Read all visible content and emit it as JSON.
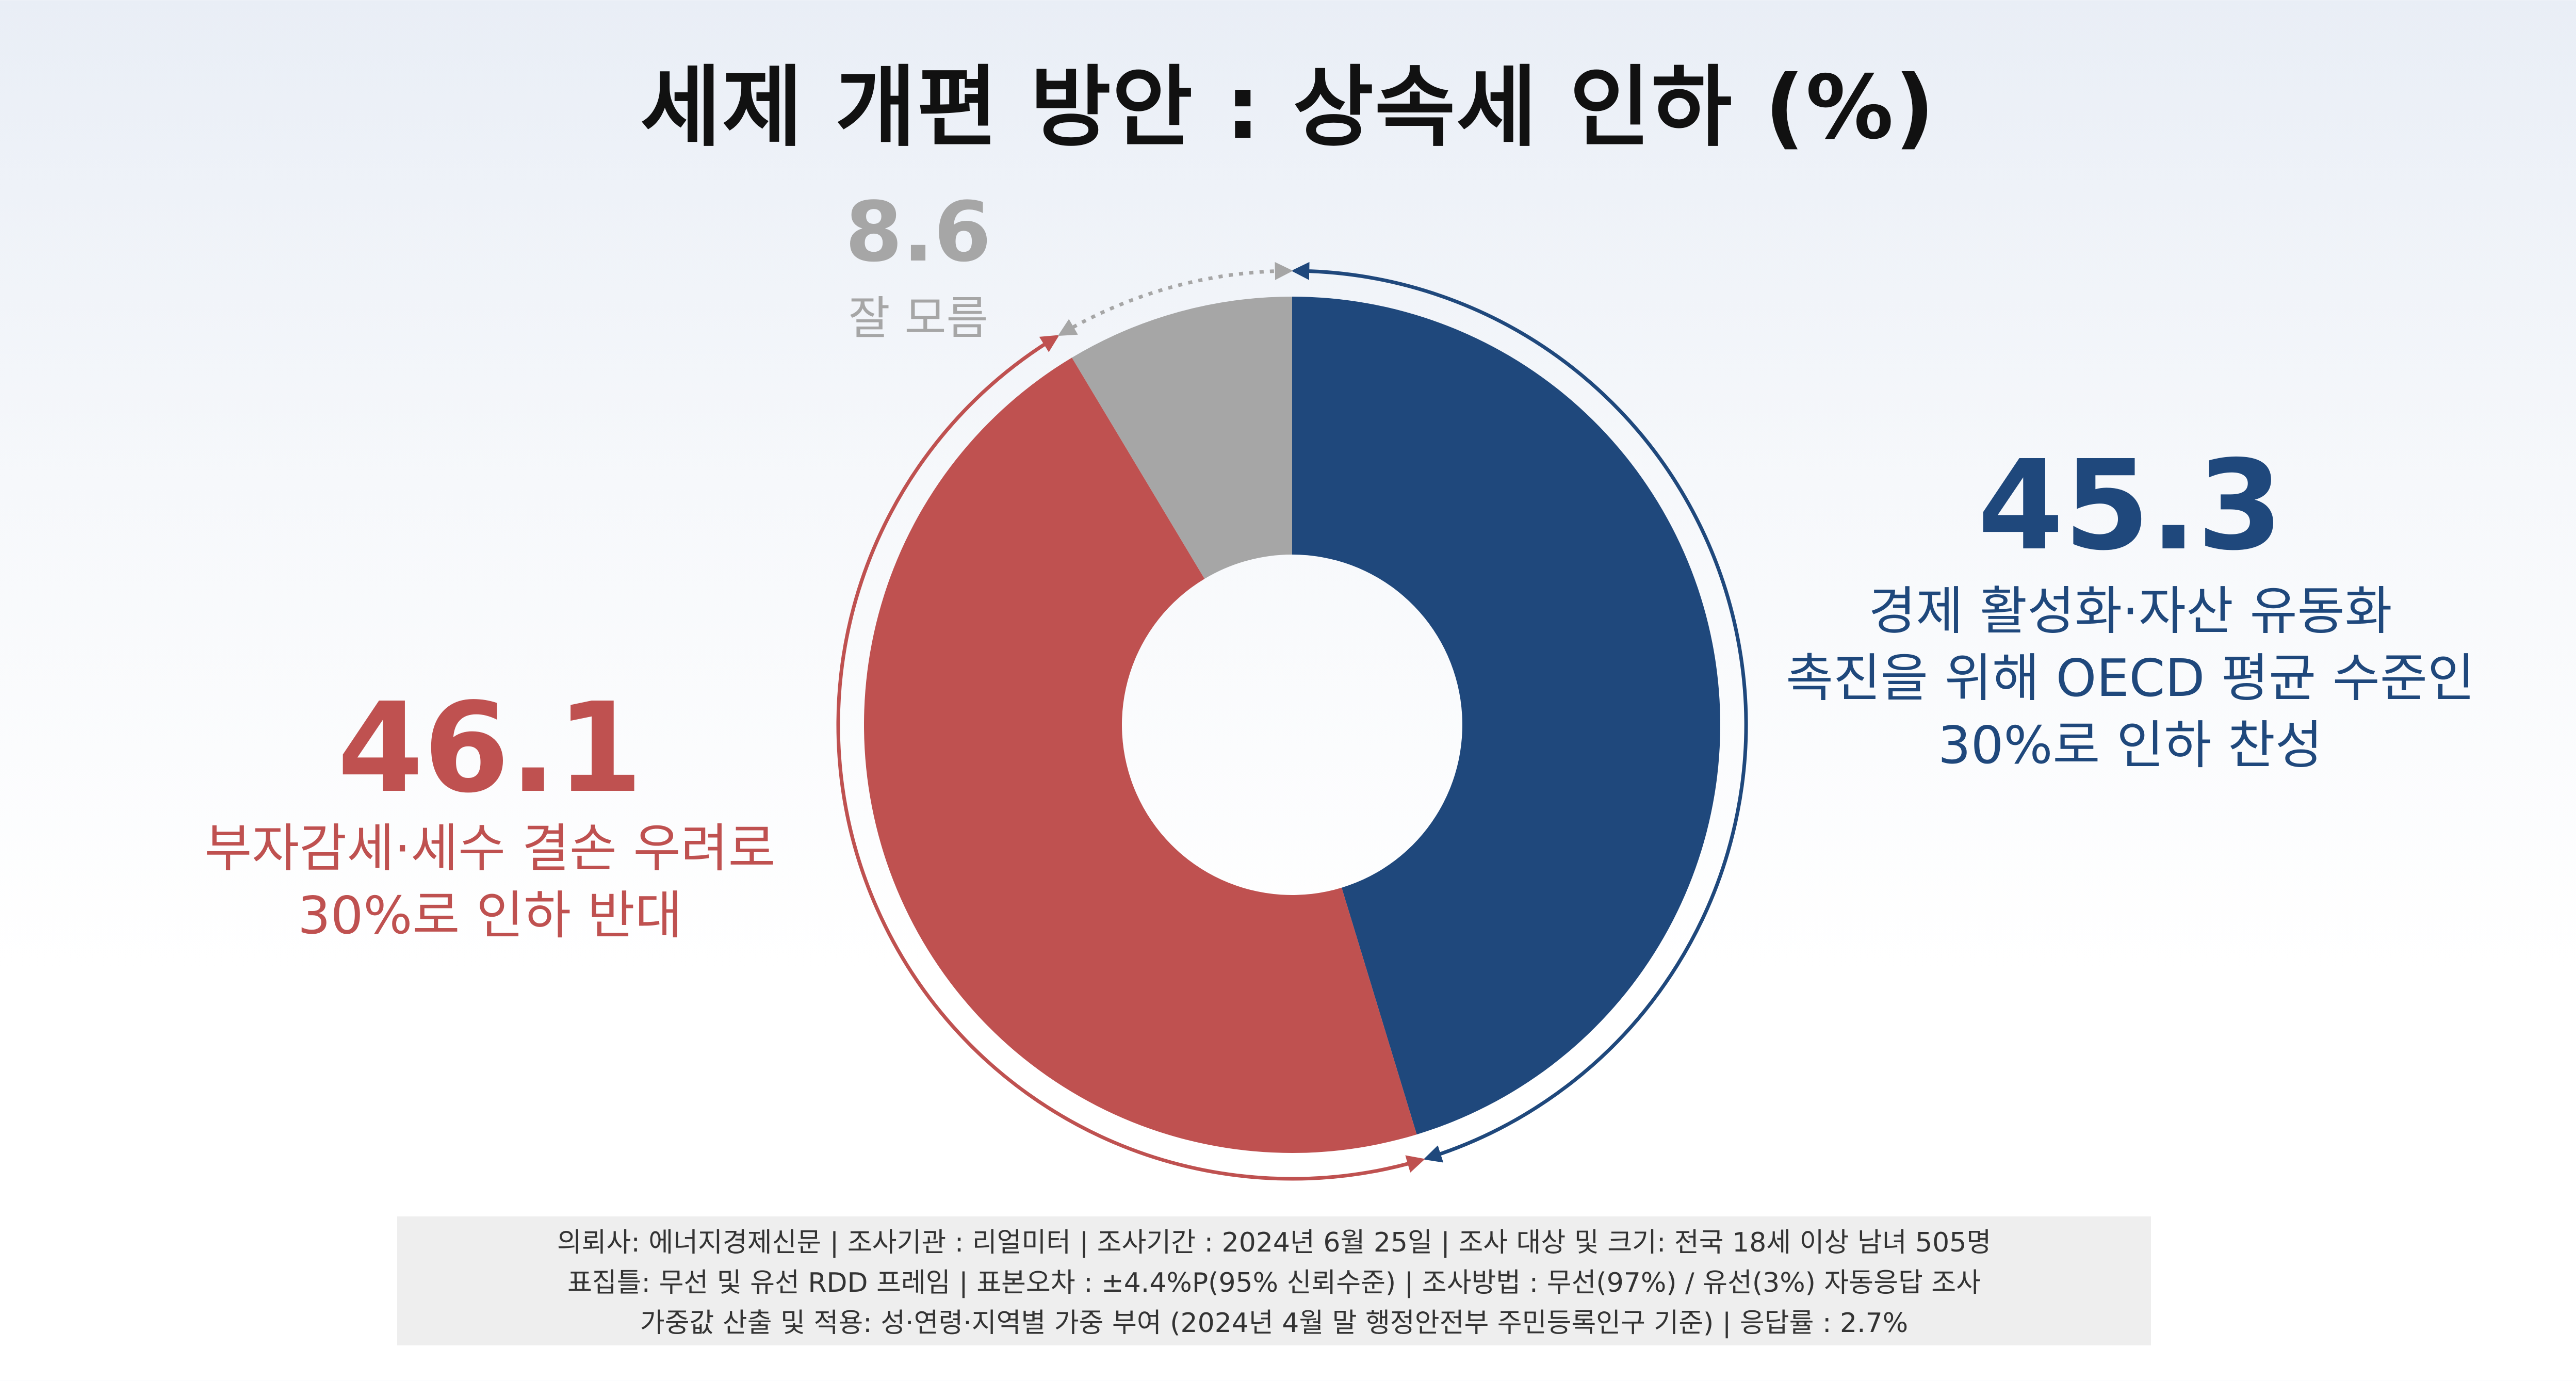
{
  "title": "세제 개편 방안 : 상속세 인하 (%)",
  "chart_data": {
    "type": "pie",
    "title": "세제 개편 방안 : 상속세 인하 (%)",
    "slices": [
      {
        "key": "favor",
        "label": "경제 활성화·자산 유동화\n촉진을 위해 OECD 평균 수준인\n30%로 인하 찬성",
        "value": 45.3,
        "color": "#1f487c"
      },
      {
        "key": "oppose",
        "label": "부자감세·세수 결손 우려로\n30%로 인하 반대",
        "value": 46.1,
        "color": "#bf5150"
      },
      {
        "key": "dont_know",
        "label": "잘 모름",
        "value": 8.6,
        "color": "#a6a6a6"
      }
    ]
  },
  "labels": {
    "favor": {
      "value": "45.3",
      "text": "경제 활성화·자산 유동화\n촉진을 위해 OECD 평균 수준인\n30%로 인하 찬성"
    },
    "oppose": {
      "value": "46.1",
      "text": "부자감세·세수 결손 우려로\n30%로 인하 반대"
    },
    "dont_know": {
      "value": "8.6",
      "text": "잘 모름"
    }
  },
  "footnote": {
    "line1": "의뢰사: 에너지경제신문 | 조사기관 : 리얼미터  |  조사기간 : 2024년 6월 25일 | 조사 대상 및 크기: 전국 18세 이상 남녀 505명",
    "line2": "표집틀: 무선 및 유선 RDD 프레임 | 표본오차 : ±4.4%P(95% 신뢰수준) | 조사방법 : 무선(97%) / 유선(3%) 자동응답 조사",
    "line3": "가중값 산출 및 적용: 성·연령·지역별 가중 부여 (2024년 4월 말 행정안전부 주민등록인구 기준) | 응답률 : 2.7%"
  }
}
